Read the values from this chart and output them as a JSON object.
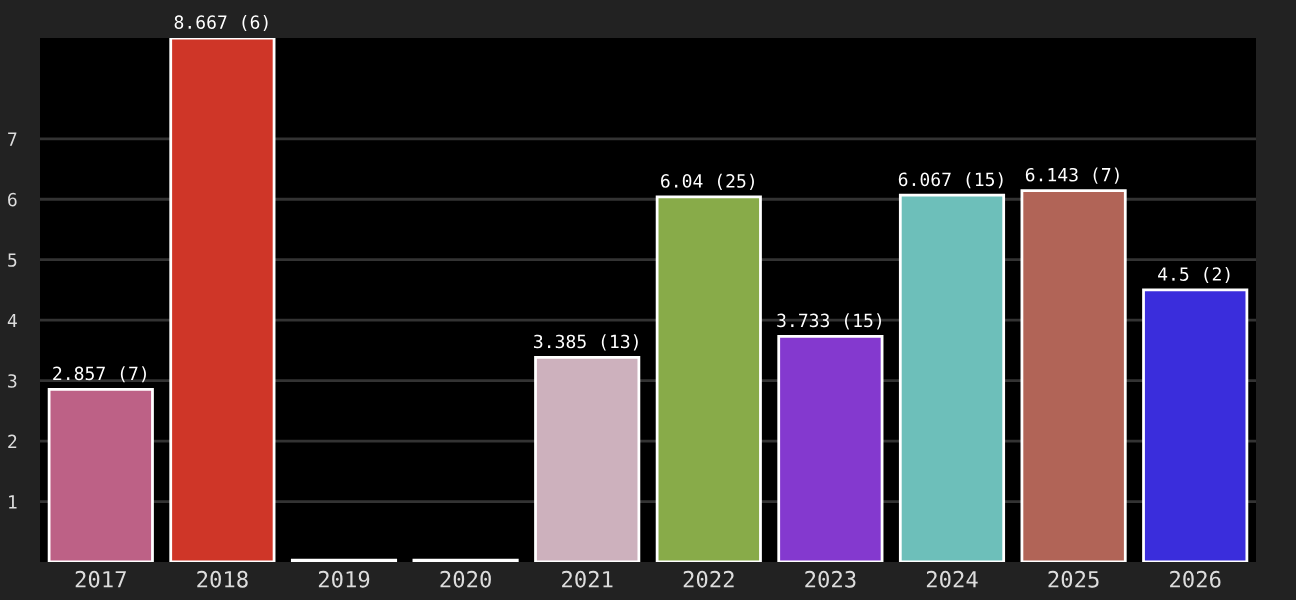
{
  "chart_data": {
    "type": "bar",
    "categories": [
      "2017",
      "2018",
      "2019",
      "2020",
      "2021",
      "2022",
      "2023",
      "2024",
      "2025",
      "2026"
    ],
    "values": [
      2.857,
      8.667,
      0.03,
      0.03,
      3.385,
      6.04,
      3.733,
      6.067,
      6.143,
      4.5
    ],
    "colors": [
      "#bd6186",
      "#cf3628",
      "#8a4f8a",
      "#3d9b5e",
      "#cdb1bd",
      "#88ab49",
      "#8439cf",
      "#6dbfba",
      "#b16457",
      "#3a2ddc"
    ],
    "value_labels": [
      "2.857 (7)",
      "8.667 (6)",
      null,
      null,
      "3.385 (13)",
      "6.04 (25)",
      "3.733 (15)",
      "6.067 (15)",
      "6.143 (7)",
      "4.5 (2)"
    ],
    "ylim": [
      0,
      8.667
    ],
    "yticks": [
      1,
      2,
      3,
      4,
      5,
      6,
      7
    ],
    "grid": "y",
    "legend": false
  }
}
